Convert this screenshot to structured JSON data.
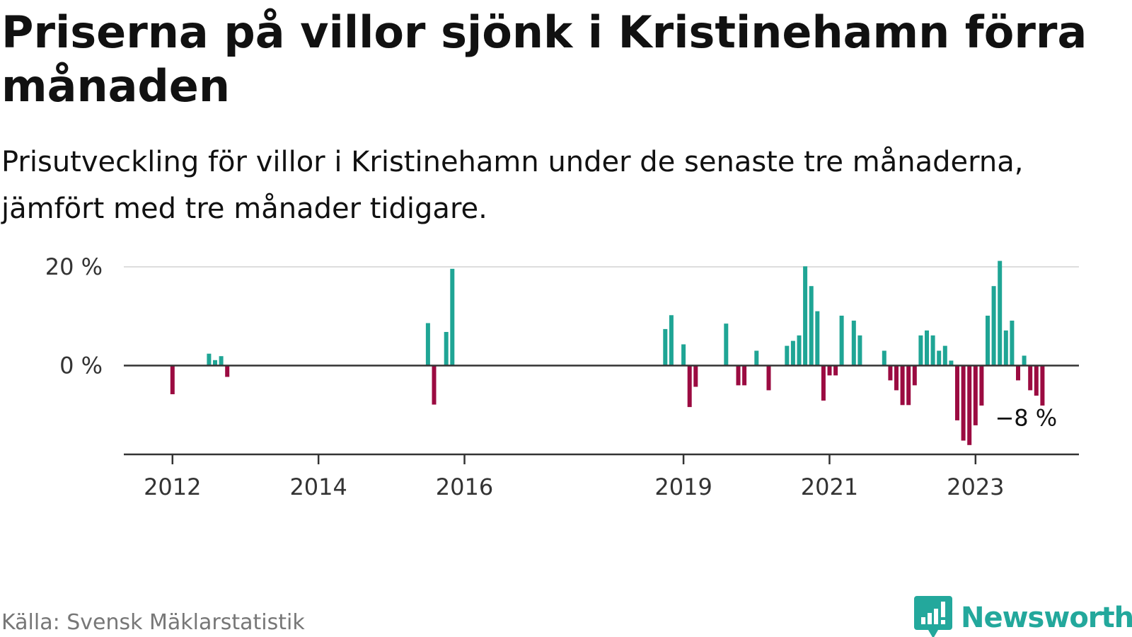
{
  "header": {
    "title": "Priserna på villor sjönk i Kristinehamn förra månaden",
    "subtitle": "Prisutveckling för villor i Kristinehamn under de senaste tre månaderna, jämfört med tre månader tidigare."
  },
  "footer": {
    "source": "Källa: Svensk Mäklarstatistik",
    "brand": "Newsworthy"
  },
  "colors": {
    "positive": "#1fa595",
    "negative": "#9b0b41",
    "gridline": "#dddddd",
    "axis": "#333333",
    "brand": "#23a89c"
  },
  "icons": {
    "logo": "newsworthy-chart-bubble-icon"
  },
  "chart_data": {
    "type": "bar",
    "title": "",
    "xlabel": "",
    "ylabel": "",
    "ylim": [
      -18,
      21
    ],
    "y_ticks": [
      {
        "value": 0,
        "label": "0 %"
      },
      {
        "value": 20,
        "label": "20 %"
      }
    ],
    "x_ticks": [
      {
        "x": "2012-01",
        "label": "2012"
      },
      {
        "x": "2014-01",
        "label": "2014"
      },
      {
        "x": "2016-01",
        "label": "2016"
      },
      {
        "x": "2019-01",
        "label": "2019"
      },
      {
        "x": "2021-01",
        "label": "2021"
      },
      {
        "x": "2023-01",
        "label": "2023"
      }
    ],
    "x_range": [
      "2011-05",
      "2024-06"
    ],
    "grid": "horizontal",
    "annotation": {
      "x": "2023-10",
      "label": "−8 %"
    },
    "series": [
      {
        "values": [
          {
            "x": "2012-01",
            "y": -5.8
          },
          {
            "x": "2012-07",
            "y": 2.4
          },
          {
            "x": "2012-08",
            "y": 1.1
          },
          {
            "x": "2012-09",
            "y": 1.9
          },
          {
            "x": "2012-10",
            "y": -2.3
          },
          {
            "x": "2015-07",
            "y": 8.6
          },
          {
            "x": "2015-08",
            "y": -7.9
          },
          {
            "x": "2015-10",
            "y": 6.8
          },
          {
            "x": "2015-11",
            "y": 19.6
          },
          {
            "x": "2018-10",
            "y": 7.4
          },
          {
            "x": "2018-11",
            "y": 10.2
          },
          {
            "x": "2019-01",
            "y": 4.3
          },
          {
            "x": "2019-02",
            "y": -8.4
          },
          {
            "x": "2019-03",
            "y": -4.3
          },
          {
            "x": "2019-08",
            "y": 8.5
          },
          {
            "x": "2019-10",
            "y": -4.0
          },
          {
            "x": "2019-11",
            "y": -4.0
          },
          {
            "x": "2020-01",
            "y": 3.0
          },
          {
            "x": "2020-03",
            "y": -5.0
          },
          {
            "x": "2020-06",
            "y": 4.0
          },
          {
            "x": "2020-07",
            "y": 5.0
          },
          {
            "x": "2020-08",
            "y": 6.1
          },
          {
            "x": "2020-09",
            "y": 20.1
          },
          {
            "x": "2020-10",
            "y": 16.1
          },
          {
            "x": "2020-11",
            "y": 11.0
          },
          {
            "x": "2020-12",
            "y": -7.1
          },
          {
            "x": "2021-01",
            "y": -2.0
          },
          {
            "x": "2021-02",
            "y": -2.0
          },
          {
            "x": "2021-03",
            "y": 10.1
          },
          {
            "x": "2021-05",
            "y": 9.1
          },
          {
            "x": "2021-06",
            "y": 6.1
          },
          {
            "x": "2021-10",
            "y": 3.0
          },
          {
            "x": "2021-11",
            "y": -3.0
          },
          {
            "x": "2021-12",
            "y": -5.0
          },
          {
            "x": "2022-01",
            "y": -8.0
          },
          {
            "x": "2022-02",
            "y": -8.0
          },
          {
            "x": "2022-03",
            "y": -4.0
          },
          {
            "x": "2022-04",
            "y": 6.1
          },
          {
            "x": "2022-05",
            "y": 7.1
          },
          {
            "x": "2022-06",
            "y": 6.1
          },
          {
            "x": "2022-07",
            "y": 3.0
          },
          {
            "x": "2022-08",
            "y": 4.0
          },
          {
            "x": "2022-09",
            "y": 1.0
          },
          {
            "x": "2022-10",
            "y": -11.1
          },
          {
            "x": "2022-11",
            "y": -15.2
          },
          {
            "x": "2022-12",
            "y": -16.1
          },
          {
            "x": "2023-01",
            "y": -12.1
          },
          {
            "x": "2023-02",
            "y": -8.1
          },
          {
            "x": "2023-03",
            "y": 10.1
          },
          {
            "x": "2023-04",
            "y": 16.1
          },
          {
            "x": "2023-05",
            "y": 21.2
          },
          {
            "x": "2023-06",
            "y": 7.1
          },
          {
            "x": "2023-07",
            "y": 9.1
          },
          {
            "x": "2023-08",
            "y": -3.0
          },
          {
            "x": "2023-09",
            "y": 2.0
          },
          {
            "x": "2023-10",
            "y": -5.0
          },
          {
            "x": "2023-11",
            "y": -6.1
          },
          {
            "x": "2023-12",
            "y": -8.1
          }
        ]
      }
    ]
  }
}
